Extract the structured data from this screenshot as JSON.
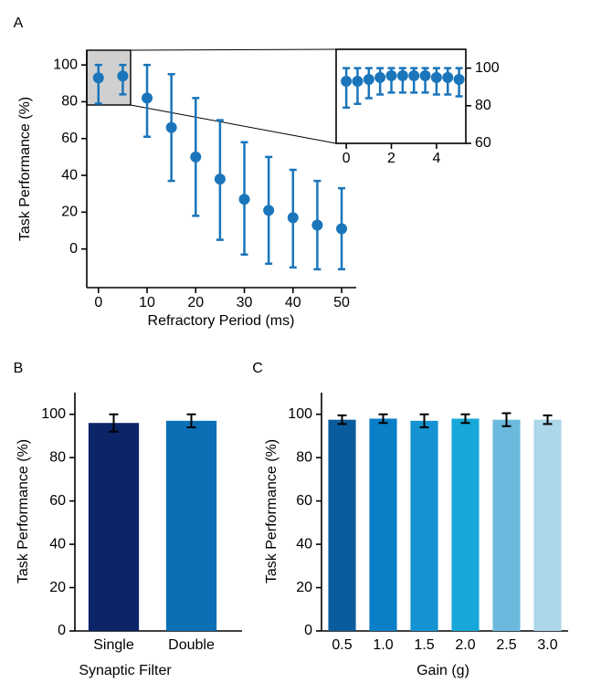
{
  "chart_data": [
    {
      "type": "scatter",
      "label": "A",
      "x_label": "Refractory Period (ms)",
      "y_label": "Task Performance (%)",
      "x": [
        0,
        5,
        10,
        15,
        20,
        25,
        30,
        35,
        40,
        45,
        50
      ],
      "values": [
        93,
        94,
        82,
        66,
        50,
        38,
        27,
        21,
        17,
        13,
        11
      ],
      "error_low": [
        14,
        10,
        21,
        29,
        32,
        33,
        30,
        29,
        27,
        24,
        22
      ],
      "error_high": [
        7,
        6,
        18,
        29,
        32,
        32,
        31,
        29,
        26,
        24,
        22
      ],
      "color": "#1a75bb",
      "xlim": [
        -2.4,
        53
      ],
      "ylim": [
        -21,
        108
      ],
      "xticks": [
        0,
        10,
        20,
        30,
        40,
        50
      ],
      "yticks": [
        0,
        20,
        40,
        60,
        80,
        100
      ]
    },
    {
      "type": "scatter",
      "x": [
        0,
        0.5,
        1,
        1.5,
        2,
        2.5,
        3,
        3.5,
        4,
        4.5,
        5
      ],
      "values": [
        93,
        93,
        94,
        95,
        96,
        96,
        96,
        96,
        95,
        95,
        94
      ],
      "error_low": [
        14,
        12,
        10,
        9,
        9,
        9,
        9,
        9,
        9,
        9,
        9
      ],
      "error_high": [
        7,
        7,
        6,
        5,
        4,
        4,
        4,
        4,
        5,
        5,
        6
      ],
      "color": "#1a75bb",
      "xlim": [
        -0.45,
        5.3
      ],
      "ylim": [
        60,
        110
      ],
      "xticks": [
        0,
        2,
        4
      ],
      "yticks": [
        60,
        80,
        100
      ]
    },
    {
      "type": "bar",
      "label": "B",
      "x_label": "Synaptic Filter",
      "y_label": "Task Performance (%)",
      "categories": [
        "Single",
        "Double"
      ],
      "values": [
        96,
        97
      ],
      "errors": [
        4,
        3
      ],
      "colors": [
        "#0c2468",
        "#0b6fb5"
      ],
      "ylim": [
        0,
        110
      ],
      "yticks": [
        0,
        20,
        40,
        60,
        80,
        100
      ]
    },
    {
      "type": "bar",
      "label": "C",
      "x_label": "Gain (g)",
      "y_label": "Task Performance (%)",
      "categories": [
        "0.5",
        "1.0",
        "1.5",
        "2.0",
        "2.5",
        "3.0"
      ],
      "values": [
        97.5,
        98,
        97,
        98,
        97.5,
        97.5
      ],
      "errors": [
        2,
        2,
        3,
        2,
        3,
        2
      ],
      "colors": [
        "#0b5c9c",
        "#0a7ec7",
        "#1492d1",
        "#16a8d8",
        "#6bbadd",
        "#acd6ea"
      ],
      "ylim": [
        0,
        110
      ],
      "yticks": [
        0,
        20,
        40,
        60,
        80,
        100
      ]
    }
  ]
}
